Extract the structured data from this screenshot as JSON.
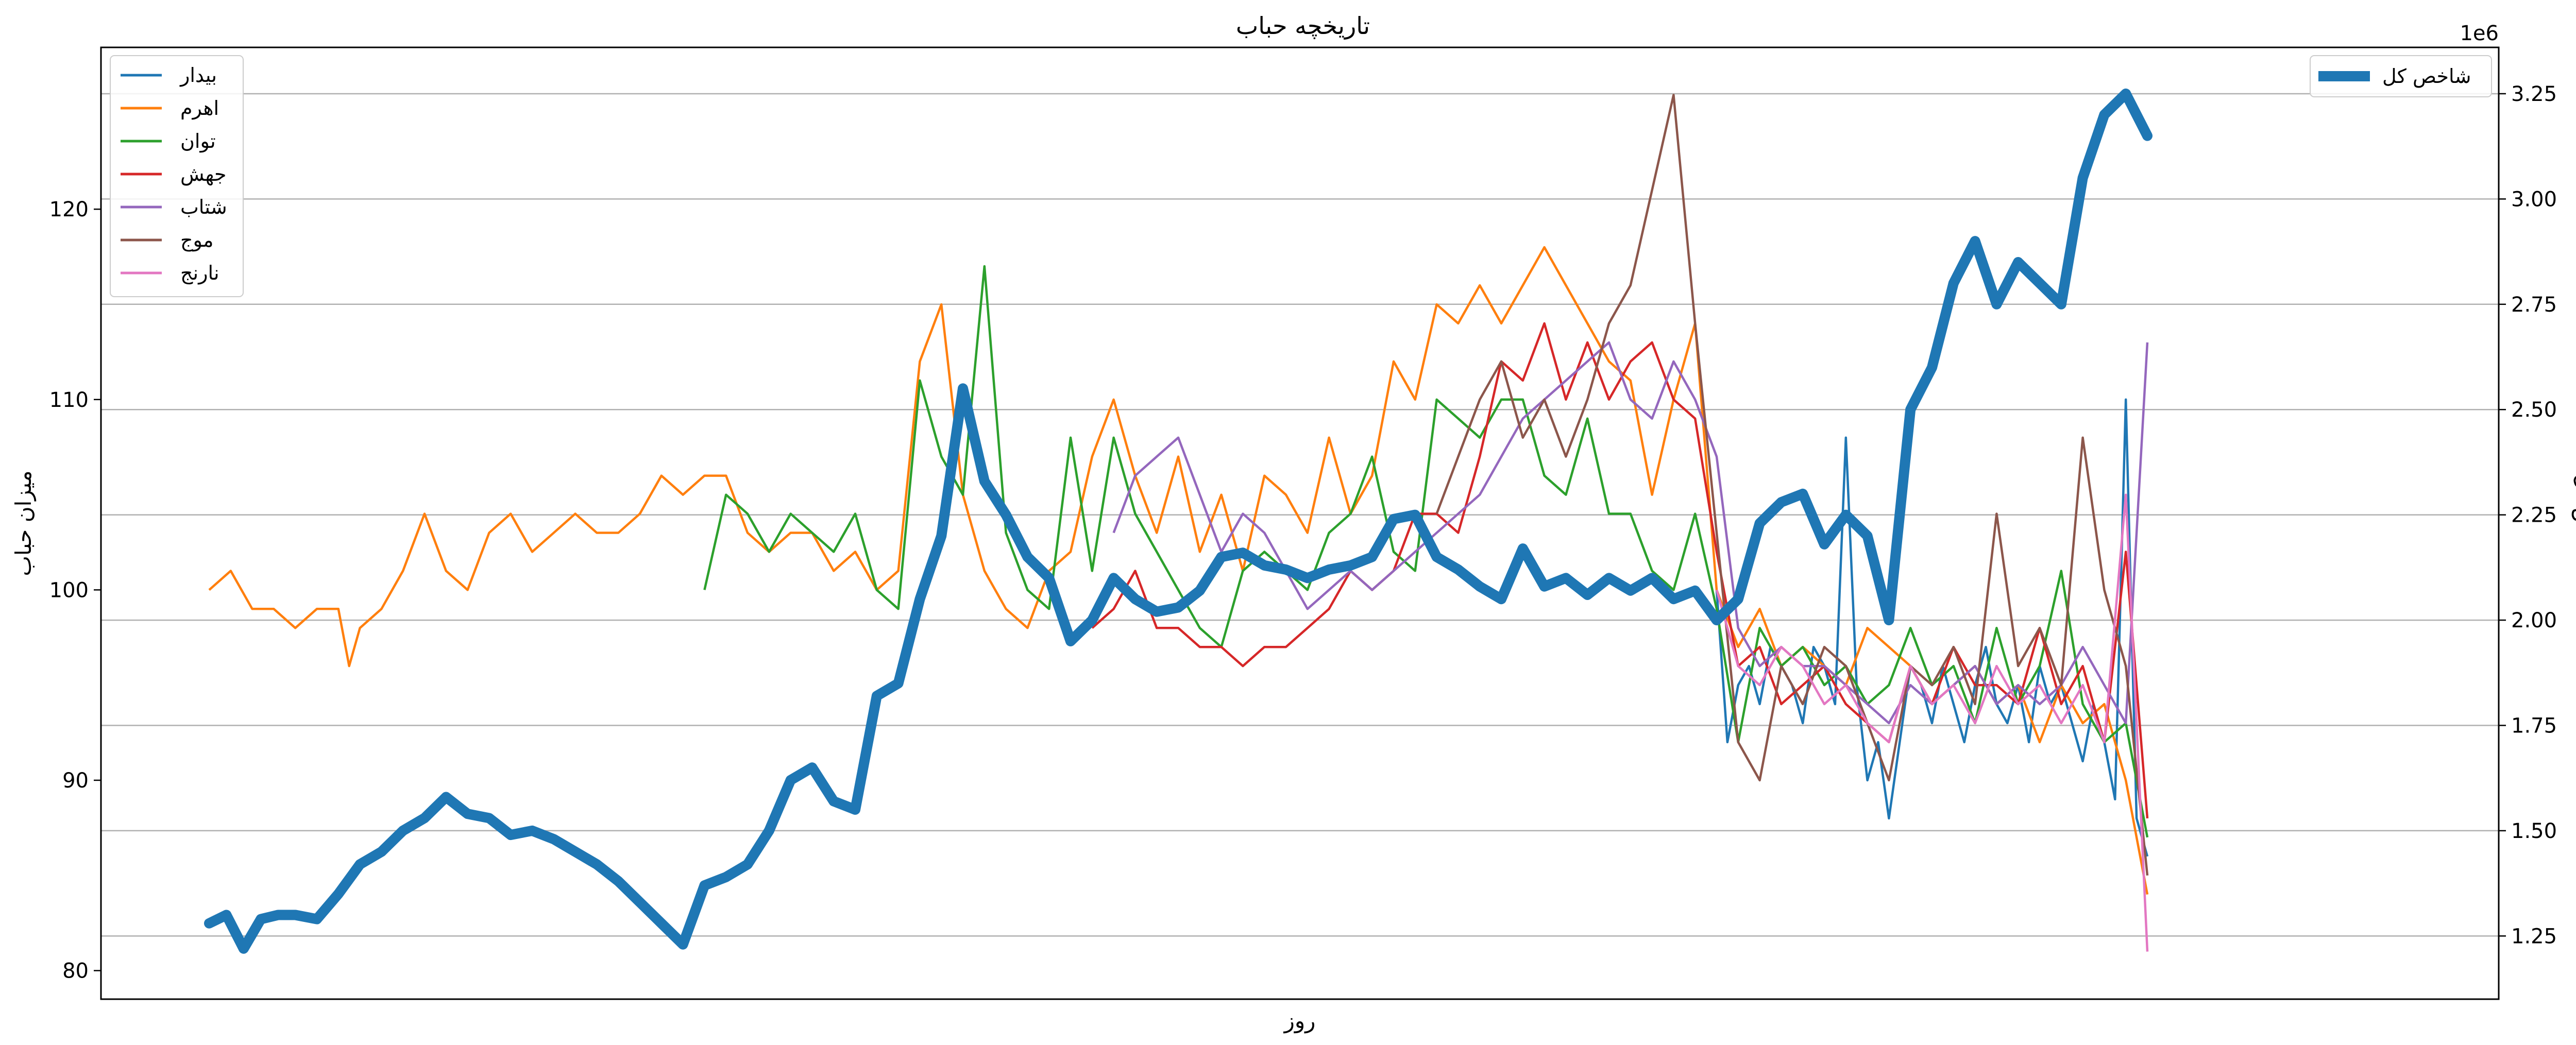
{
  "chart_data": {
    "type": "line",
    "title": "تاریخچه  حباب",
    "xlabel": "روز",
    "ylabel_left": "میزان حباب",
    "ylabel_right": "شاخص کل",
    "x_range": [
      0,
      1000
    ],
    "ylim_left": [
      78.5,
      128.5
    ],
    "yticks_left": [
      "80",
      "90",
      "100",
      "110",
      "120"
    ],
    "ylim_right": [
      1100000,
      3360000
    ],
    "yticks_right": [
      "1.25",
      "1.50",
      "1.75",
      "2.00",
      "2.25",
      "2.50",
      "2.75",
      "3.00",
      "3.25"
    ],
    "right_axis_offset_label": "1e6",
    "grid_on_right_axis": true,
    "legend_left_placement": "top-left",
    "legend_right_placement": "top-right",
    "series": [
      {
        "name": "بیدار",
        "color": "#1f77b4",
        "x": [
          700,
          705,
          710,
          715,
          720,
          725,
          730,
          735,
          740,
          745,
          750,
          755,
          760,
          765,
          770,
          775,
          780,
          785,
          790,
          795,
          800,
          805,
          810,
          815,
          820,
          825,
          830,
          835,
          840,
          845,
          850,
          855,
          860,
          865,
          870,
          875,
          880,
          885,
          890,
          895,
          900
        ],
        "y": [
          100,
          92,
          95,
          96,
          94,
          97,
          96,
          95,
          93,
          97,
          96,
          94,
          108,
          95,
          90,
          92,
          88,
          92,
          96,
          95,
          93,
          96,
          94,
          92,
          95,
          97,
          94,
          93,
          95,
          92,
          96,
          94,
          95,
          93,
          91,
          94,
          92,
          89,
          110,
          88,
          86
        ]
      },
      {
        "name": "اهرم",
        "color": "#ff7f0e",
        "x": [
          0,
          10,
          20,
          30,
          40,
          50,
          60,
          65,
          70,
          80,
          90,
          100,
          110,
          120,
          130,
          140,
          150,
          160,
          170,
          180,
          190,
          200,
          210,
          220,
          230,
          240,
          250,
          260,
          270,
          280,
          290,
          300,
          310,
          320,
          330,
          340,
          350,
          360,
          370,
          380,
          390,
          400,
          410,
          420,
          430,
          440,
          450,
          460,
          470,
          480,
          490,
          500,
          510,
          520,
          530,
          540,
          550,
          560,
          570,
          580,
          590,
          600,
          610,
          620,
          630,
          640,
          650,
          660,
          670,
          680,
          690,
          700,
          710,
          720,
          730,
          740,
          750,
          760,
          770,
          780,
          790,
          800,
          810,
          820,
          830,
          840,
          850,
          860,
          870,
          880,
          890,
          900
        ],
        "y": [
          100,
          101,
          99,
          99,
          98,
          99,
          99,
          96,
          98,
          99,
          101,
          104,
          101,
          100,
          103,
          104,
          102,
          103,
          104,
          103,
          103,
          104,
          106,
          105,
          106,
          106,
          103,
          102,
          103,
          103,
          101,
          102,
          100,
          101,
          112,
          115,
          105,
          101,
          99,
          98,
          101,
          102,
          107,
          110,
          106,
          103,
          107,
          102,
          105,
          101,
          106,
          105,
          103,
          108,
          104,
          106,
          112,
          110,
          115,
          114,
          116,
          114,
          116,
          118,
          116,
          114,
          112,
          111,
          105,
          110,
          114,
          100,
          97,
          99,
          96,
          97,
          96,
          95,
          98,
          97,
          96,
          94,
          95,
          96,
          94,
          95,
          92,
          95,
          93,
          94,
          90,
          84
        ]
      },
      {
        "name": "توان",
        "color": "#2ca02c",
        "x": [
          230,
          240,
          250,
          260,
          270,
          280,
          290,
          300,
          310,
          320,
          330,
          340,
          350,
          360,
          370,
          380,
          390,
          400,
          410,
          420,
          430,
          440,
          450,
          460,
          470,
          480,
          490,
          500,
          510,
          520,
          530,
          540,
          550,
          560,
          570,
          580,
          590,
          600,
          610,
          620,
          630,
          640,
          650,
          660,
          670,
          680,
          690,
          700,
          710,
          720,
          730,
          740,
          750,
          760,
          770,
          780,
          790,
          800,
          810,
          820,
          830,
          840,
          850,
          860,
          870,
          880,
          890,
          900
        ],
        "y": [
          100,
          105,
          104,
          102,
          104,
          103,
          102,
          104,
          100,
          99,
          111,
          107,
          105,
          117,
          103,
          100,
          99,
          108,
          101,
          108,
          104,
          102,
          100,
          98,
          97,
          101,
          102,
          101,
          100,
          103,
          104,
          107,
          102,
          101,
          110,
          109,
          108,
          110,
          110,
          106,
          105,
          109,
          104,
          104,
          101,
          100,
          104,
          99,
          92,
          98,
          96,
          97,
          95,
          96,
          94,
          95,
          98,
          95,
          96,
          93,
          98,
          94,
          96,
          101,
          94,
          92,
          93,
          87
        ]
      },
      {
        "name": "جهش",
        "color": "#d62728",
        "x": [
          410,
          420,
          430,
          440,
          450,
          460,
          470,
          480,
          490,
          500,
          510,
          520,
          530,
          540,
          550,
          560,
          570,
          580,
          590,
          600,
          610,
          620,
          630,
          640,
          650,
          660,
          670,
          680,
          690,
          700,
          710,
          720,
          730,
          740,
          750,
          760,
          770,
          780,
          790,
          800,
          810,
          820,
          830,
          840,
          850,
          860,
          870,
          880,
          890,
          900
        ],
        "y": [
          98,
          99,
          101,
          98,
          98,
          97,
          97,
          96,
          97,
          97,
          98,
          99,
          101,
          100,
          101,
          104,
          104,
          103,
          107,
          112,
          111,
          114,
          110,
          113,
          110,
          112,
          113,
          110,
          109,
          102,
          96,
          97,
          94,
          95,
          96,
          94,
          93,
          92,
          96,
          94,
          97,
          95,
          95,
          94,
          98,
          94,
          96,
          92,
          102,
          88
        ]
      },
      {
        "name": "شتاب",
        "color": "#9467bd",
        "x": [
          420,
          430,
          440,
          450,
          460,
          470,
          480,
          490,
          500,
          510,
          520,
          530,
          540,
          550,
          560,
          570,
          580,
          590,
          600,
          610,
          620,
          630,
          640,
          650,
          660,
          670,
          680,
          690,
          700,
          710,
          720,
          730,
          740,
          750,
          760,
          770,
          780,
          790,
          800,
          810,
          820,
          830,
          840,
          850,
          860,
          870,
          880,
          890,
          900
        ],
        "y": [
          103,
          106,
          107,
          108,
          105,
          102,
          104,
          103,
          101,
          99,
          100,
          101,
          100,
          101,
          102,
          103,
          104,
          105,
          107,
          109,
          110,
          111,
          112,
          113,
          110,
          109,
          112,
          110,
          107,
          98,
          96,
          97,
          96,
          96,
          95,
          94,
          93,
          95,
          94,
          95,
          96,
          94,
          95,
          94,
          95,
          97,
          95,
          93,
          113
        ]
      },
      {
        "name": "موج",
        "color": "#8c564b",
        "x": [
          570,
          580,
          590,
          600,
          610,
          620,
          630,
          640,
          650,
          660,
          670,
          680,
          690,
          700,
          710,
          720,
          730,
          740,
          750,
          760,
          770,
          780,
          790,
          800,
          810,
          820,
          830,
          840,
          850,
          860,
          870,
          880,
          890,
          900
        ],
        "y": [
          104,
          107,
          110,
          112,
          108,
          110,
          107,
          110,
          114,
          116,
          121,
          126,
          114,
          103,
          92,
          90,
          96,
          94,
          97,
          96,
          93,
          90,
          96,
          95,
          97,
          94,
          104,
          96,
          98,
          95,
          108,
          100,
          96,
          85
        ]
      },
      {
        "name": "نارنج",
        "color": "#e377c2",
        "x": [
          700,
          710,
          720,
          730,
          740,
          750,
          760,
          770,
          780,
          790,
          800,
          810,
          820,
          830,
          840,
          850,
          860,
          870,
          880,
          890,
          900
        ],
        "y": [
          100,
          96,
          95,
          97,
          96,
          94,
          95,
          93,
          92,
          96,
          94,
          95,
          93,
          96,
          94,
          95,
          93,
          95,
          92,
          105,
          81
        ]
      }
    ],
    "right_series": [
      {
        "name": "شاخص کل",
        "color": "#1f77b4",
        "x": [
          0,
          8,
          16,
          24,
          32,
          40,
          50,
          60,
          70,
          80,
          90,
          100,
          110,
          120,
          130,
          140,
          150,
          160,
          170,
          180,
          190,
          200,
          210,
          220,
          230,
          240,
          250,
          260,
          270,
          280,
          290,
          300,
          310,
          320,
          330,
          340,
          350,
          360,
          370,
          380,
          390,
          400,
          410,
          420,
          430,
          440,
          450,
          460,
          470,
          480,
          490,
          500,
          510,
          520,
          530,
          540,
          550,
          560,
          570,
          580,
          590,
          600,
          610,
          620,
          630,
          640,
          650,
          660,
          670,
          680,
          690,
          700,
          710,
          720,
          730,
          740,
          750,
          760,
          770,
          780,
          790,
          800,
          810,
          820,
          830,
          840,
          850,
          860,
          870,
          880,
          890,
          900
        ],
        "y": [
          1280000,
          1300000,
          1220000,
          1290000,
          1300000,
          1300000,
          1290000,
          1350000,
          1420000,
          1450000,
          1500000,
          1530000,
          1580000,
          1540000,
          1530000,
          1490000,
          1500000,
          1480000,
          1450000,
          1420000,
          1380000,
          1330000,
          1280000,
          1230000,
          1370000,
          1390000,
          1420000,
          1500000,
          1620000,
          1650000,
          1570000,
          1550000,
          1820000,
          1850000,
          2050000,
          2200000,
          2550000,
          2330000,
          2250000,
          2150000,
          2100000,
          1950000,
          2000000,
          2100000,
          2050000,
          2020000,
          2030000,
          2070000,
          2150000,
          2160000,
          2130000,
          2120000,
          2100000,
          2120000,
          2130000,
          2150000,
          2240000,
          2250000,
          2150000,
          2120000,
          2080000,
          2050000,
          2170000,
          2080000,
          2100000,
          2060000,
          2100000,
          2070000,
          2100000,
          2050000,
          2070000,
          2000000,
          2050000,
          2230000,
          2280000,
          2300000,
          2180000,
          2250000,
          2200000,
          2000000,
          2500000,
          2600000,
          2800000,
          2900000,
          2750000,
          2850000,
          2800000,
          2750000,
          3050000,
          3200000,
          3250000,
          3150000
        ]
      }
    ]
  }
}
